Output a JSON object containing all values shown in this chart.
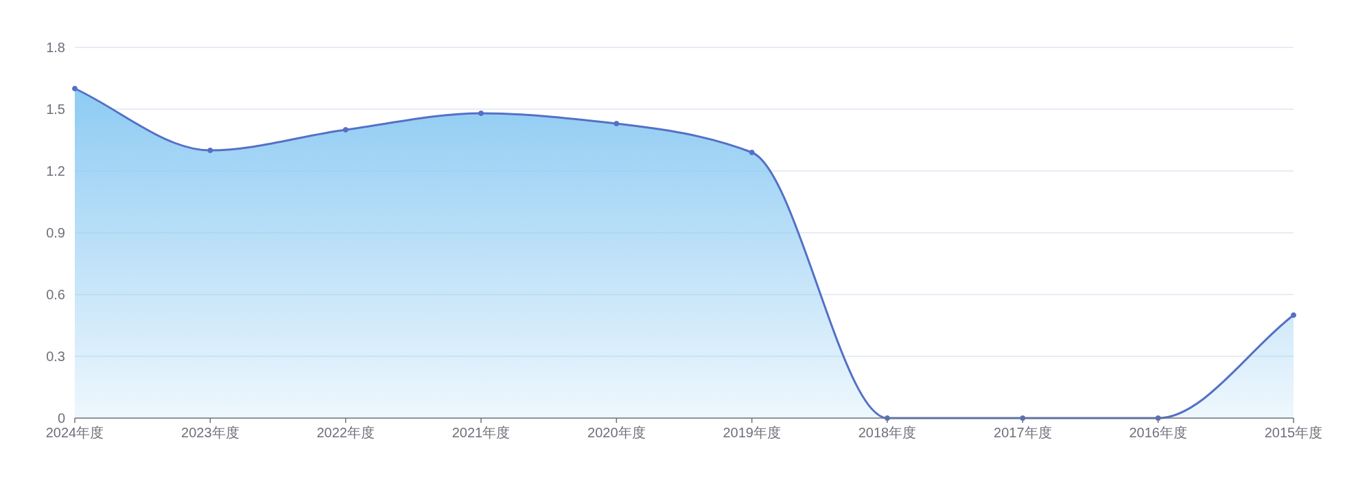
{
  "chart_data": {
    "type": "area",
    "categories": [
      "2024年度",
      "2023年度",
      "2022年度",
      "2021年度",
      "2020年度",
      "2019年度",
      "2018年度",
      "2017年度",
      "2016年度",
      "2015年度"
    ],
    "series": [
      {
        "color": "#5470c6",
        "values": [
          1.6,
          1.3,
          1.4,
          1.48,
          1.43,
          1.29,
          0,
          0,
          0,
          0.5
        ]
      }
    ],
    "ylim": [
      0,
      1.8
    ],
    "yticks": [
      0,
      0.3,
      0.6,
      0.9,
      1.2,
      1.5,
      1.8
    ],
    "grid": "y",
    "marker": "circle"
  }
}
